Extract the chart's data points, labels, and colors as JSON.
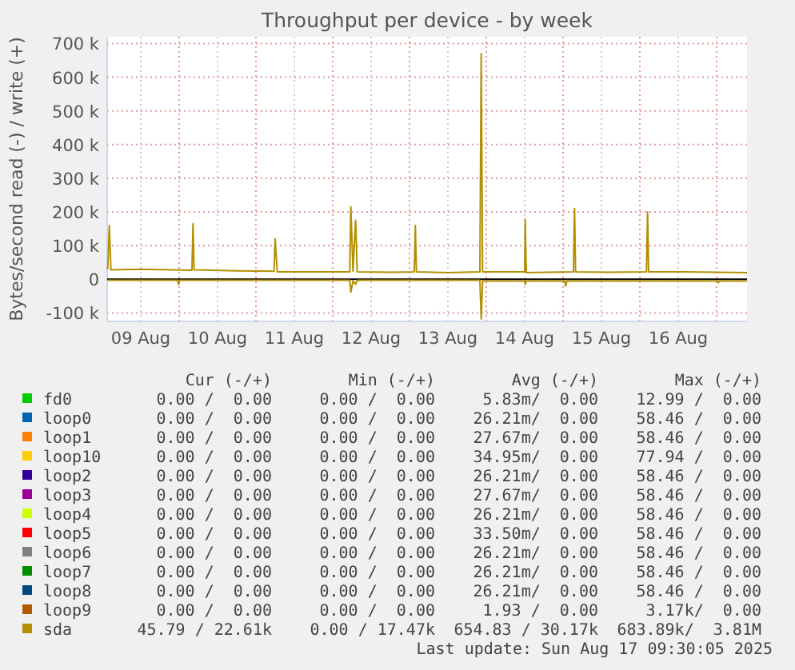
{
  "chart_data": {
    "type": "line",
    "title": "Throughput per device - by week",
    "ylabel": "Bytes/second read (-) / write (+)",
    "xlim": [
      "2025-08-09T01:30",
      "2025-08-17T09:30"
    ],
    "xticks": [
      {
        "value": "2025-08-09T12:00",
        "label": "09 Aug"
      },
      {
        "value": "2025-08-10T00:00",
        "label": null
      },
      {
        "value": "2025-08-10T12:00",
        "label": "10 Aug"
      },
      {
        "value": "2025-08-11T00:00",
        "label": null
      },
      {
        "value": "2025-08-11T12:00",
        "label": "11 Aug"
      },
      {
        "value": "2025-08-12T00:00",
        "label": null
      },
      {
        "value": "2025-08-12T12:00",
        "label": "12 Aug"
      },
      {
        "value": "2025-08-13T00:00",
        "label": null
      },
      {
        "value": "2025-08-13T12:00",
        "label": "13 Aug"
      },
      {
        "value": "2025-08-14T00:00",
        "label": null
      },
      {
        "value": "2025-08-14T12:00",
        "label": "14 Aug"
      },
      {
        "value": "2025-08-15T00:00",
        "label": null
      },
      {
        "value": "2025-08-15T12:00",
        "label": "15 Aug"
      },
      {
        "value": "2025-08-16T00:00",
        "label": null
      },
      {
        "value": "2025-08-16T12:00",
        "label": "16 Aug"
      },
      {
        "value": "2025-08-17T00:00",
        "label": null
      }
    ],
    "ylim": [
      -125000,
      720000
    ],
    "yticks": [
      {
        "value": -100000,
        "label": "-100 k"
      },
      0,
      {
        "value": 100000,
        "label": "100 k"
      },
      {
        "value": 200000,
        "label": "200 k"
      },
      {
        "value": 300000,
        "label": "300 k"
      },
      {
        "value": 400000,
        "label": "400 k"
      },
      {
        "value": 500000,
        "label": "500 k"
      },
      {
        "value": 600000,
        "label": "600 k"
      },
      {
        "value": 700000,
        "label": "700 k"
      }
    ],
    "grid": true,
    "legend": "bottom",
    "marker": "none",
    "line_style": "solid",
    "series": [
      {
        "name": "fd0",
        "color": "#00cc00"
      },
      {
        "name": "loop0",
        "color": "#0066b3"
      },
      {
        "name": "loop1",
        "color": "#ff8000"
      },
      {
        "name": "loop10",
        "color": "#ffcc00"
      },
      {
        "name": "loop2",
        "color": "#330099"
      },
      {
        "name": "loop3",
        "color": "#990099"
      },
      {
        "name": "loop4",
        "color": "#ccff00"
      },
      {
        "name": "loop5",
        "color": "#ff0000"
      },
      {
        "name": "loop6",
        "color": "#808080"
      },
      {
        "name": "loop7",
        "color": "#008f00"
      },
      {
        "name": "loop8",
        "color": "#00487d"
      },
      {
        "name": "loop9",
        "color": "#b35a00"
      },
      {
        "name": "sda",
        "color": "#b38f00",
        "x": [
          "2025-08-09T01:40",
          "2025-08-09T02:10",
          "2025-08-09T02:40",
          "2025-08-09T12:00",
          "2025-08-10T04:00",
          "2025-08-10T04:20",
          "2025-08-10T04:40",
          "2025-08-10T18:00",
          "2025-08-11T05:40",
          "2025-08-11T06:00",
          "2025-08-11T06:40",
          "2025-08-11T18:00",
          "2025-08-12T05:20",
          "2025-08-12T05:40",
          "2025-08-12T06:20",
          "2025-08-12T07:10",
          "2025-08-12T07:40",
          "2025-08-12T18:00",
          "2025-08-13T01:30",
          "2025-08-13T01:50",
          "2025-08-13T02:10",
          "2025-08-13T12:00",
          "2025-08-13T22:00",
          "2025-08-13T22:25",
          "2025-08-13T22:50",
          "2025-08-14T12:00",
          "2025-08-14T12:10",
          "2025-08-14T12:30",
          "2025-08-15T03:15",
          "2025-08-15T03:35",
          "2025-08-15T03:55",
          "2025-08-15T14:00",
          "2025-08-16T02:05",
          "2025-08-16T02:25",
          "2025-08-16T02:45",
          "2025-08-16T14:00",
          "2025-08-17T09:30"
        ],
        "values": [
          30000,
          160000,
          28000,
          30000,
          27000,
          165000,
          28000,
          25000,
          24000,
          120000,
          22000,
          22000,
          22000,
          215000,
          24000,
          175000,
          22000,
          21000,
          22000,
          160000,
          22000,
          20000,
          22000,
          670000,
          22000,
          22000,
          178000,
          20000,
          22000,
          210000,
          22000,
          21000,
          22000,
          200000,
          22000,
          22000,
          20000
        ]
      },
      {
        "color": "#b38f00",
        "x": [
          "2025-08-09T01:40",
          "2025-08-09T23:30",
          "2025-08-09T23:50",
          "2025-08-10T00:10",
          "2025-08-12T05:20",
          "2025-08-12T05:40",
          "2025-08-12T06:20",
          "2025-08-12T07:10",
          "2025-08-12T07:40",
          "2025-08-13T22:00",
          "2025-08-13T22:25",
          "2025-08-13T22:50",
          "2025-08-14T12:00",
          "2025-08-14T12:10",
          "2025-08-14T12:30",
          "2025-08-15T00:30",
          "2025-08-15T00:50",
          "2025-08-15T01:10",
          "2025-08-17T00:15",
          "2025-08-17T00:35",
          "2025-08-17T00:55",
          "2025-08-17T09:30"
        ],
        "values": [
          -3000,
          -3000,
          -15000,
          -3000,
          -3000,
          -38000,
          -5000,
          -15000,
          -3000,
          -3000,
          -118000,
          -5000,
          -5000,
          -15000,
          -5000,
          -5000,
          -20000,
          -5000,
          -5000,
          -10000,
          -5000,
          -5000
        ]
      }
    ],
    "annotations": [
      "Cur (-/+)",
      "Min (-/+)",
      "Avg (-/+)",
      "Max (-/+)",
      "0.00 /  0.00",
      "0.00 /  0.00",
      "5.83m/  0.00",
      "12.99 /  0.00",
      "0.00 /  0.00",
      "0.00 /  0.00",
      "26.21m/  0.00",
      "58.46 /  0.00",
      "0.00 /  0.00",
      "0.00 /  0.00",
      "27.67m/  0.00",
      "58.46 /  0.00",
      "0.00 /  0.00",
      "0.00 /  0.00",
      "34.95m/  0.00",
      "77.94 /  0.00",
      "0.00 /  0.00",
      "0.00 /  0.00",
      "26.21m/  0.00",
      "58.46 /  0.00",
      "0.00 /  0.00",
      "0.00 /  0.00",
      "27.67m/  0.00",
      "58.46 /  0.00",
      "0.00 /  0.00",
      "0.00 /  0.00",
      "26.21m/  0.00",
      "58.46 /  0.00",
      "0.00 /  0.00",
      "0.00 /  0.00",
      "33.50m/  0.00",
      "58.46 /  0.00",
      "0.00 /  0.00",
      "0.00 /  0.00",
      "26.21m/  0.00",
      "58.46 /  0.00",
      "0.00 /  0.00",
      "0.00 /  0.00",
      "26.21m/  0.00",
      "58.46 /  0.00",
      "0.00 /  0.00",
      "0.00 /  0.00",
      "26.21m/  0.00",
      "58.46 /  0.00",
      "0.00 /  0.00",
      "0.00 /  0.00",
      "1.93 /  0.00",
      "3.17k/  0.00",
      "45.79 / 22.61k",
      "0.00 / 17.47k",
      "654.83 / 30.17k",
      "683.89k/  3.81M",
      "Last update: Sun Aug 17 09:30:05 2025"
    ]
  }
}
